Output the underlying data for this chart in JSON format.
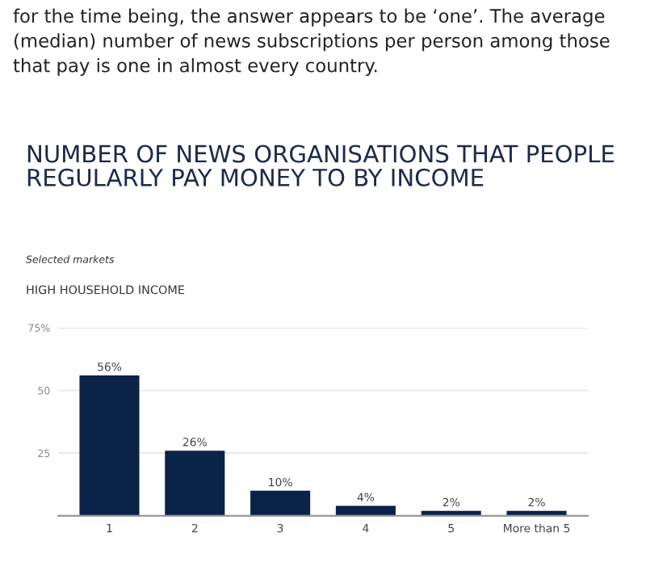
{
  "chart_data": {
    "type": "bar",
    "title": "NUMBER OF NEWS ORGANISATIONS THAT PEOPLE REGULARLY PAY MONEY TO BY INCOME",
    "subtitle": "Selected markets",
    "annotations": [
      "for the time being, the answer appears to be ‘one’. The average (median) number of news subscriptions per person among those that pay is one in almost every country.",
      "HIGH HOUSEHOLD INCOME"
    ],
    "categories": [
      "1",
      "2",
      "3",
      "4",
      "5",
      "More than 5"
    ],
    "values": [
      56,
      26,
      10,
      4,
      2,
      2
    ],
    "value_labels": [
      "56%",
      "26%",
      "10%",
      "4%",
      "2%",
      "2%"
    ],
    "color": "#0b2249",
    "ylim": [
      0,
      75
    ],
    "yticks": [
      {
        "value": 0,
        "label": null
      },
      25,
      50,
      {
        "value": 75,
        "label": "75%"
      }
    ],
    "grid": "y"
  }
}
